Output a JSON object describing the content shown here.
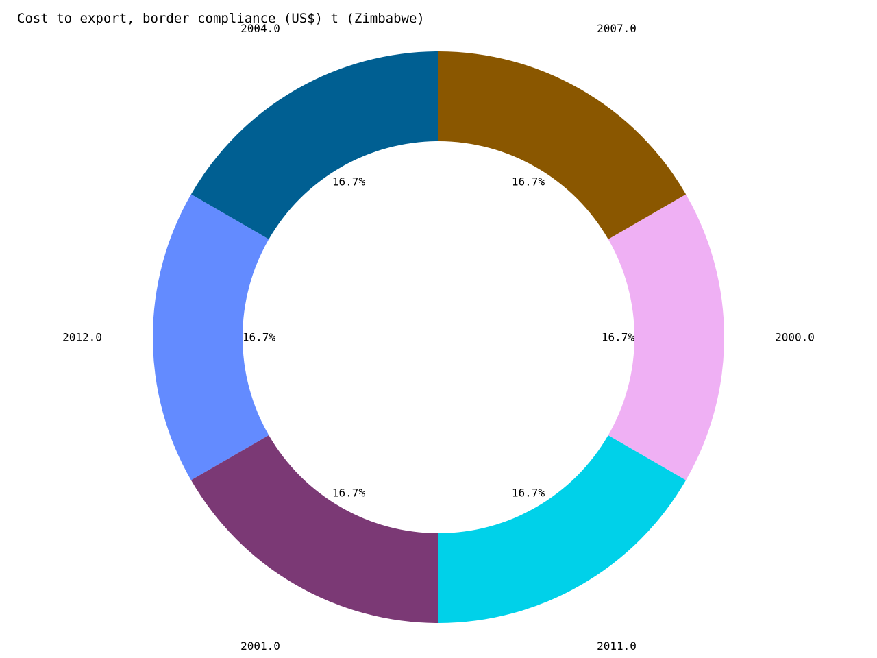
{
  "chart_data": {
    "type": "pie",
    "donut": true,
    "title": "Cost to export, border compliance (US$) t (Zimbabwe)",
    "start_angle_deg": 90,
    "direction": "counterclockwise",
    "slices": [
      {
        "label": "2004.0",
        "value": 1,
        "percent_label": "16.7%",
        "color": "#005f92"
      },
      {
        "label": "2012.0",
        "value": 1,
        "percent_label": "16.7%",
        "color": "#638bff"
      },
      {
        "label": "2001.0",
        "value": 1,
        "percent_label": "16.7%",
        "color": "#7b3975"
      },
      {
        "label": "2011.0",
        "value": 1,
        "percent_label": "16.7%",
        "color": "#00d1e9"
      },
      {
        "label": "2000.0",
        "value": 1,
        "percent_label": "16.7%",
        "color": "#efb0f4"
      },
      {
        "label": "2007.0",
        "value": 1,
        "percent_label": "16.7%",
        "color": "#8a5700"
      }
    ]
  }
}
